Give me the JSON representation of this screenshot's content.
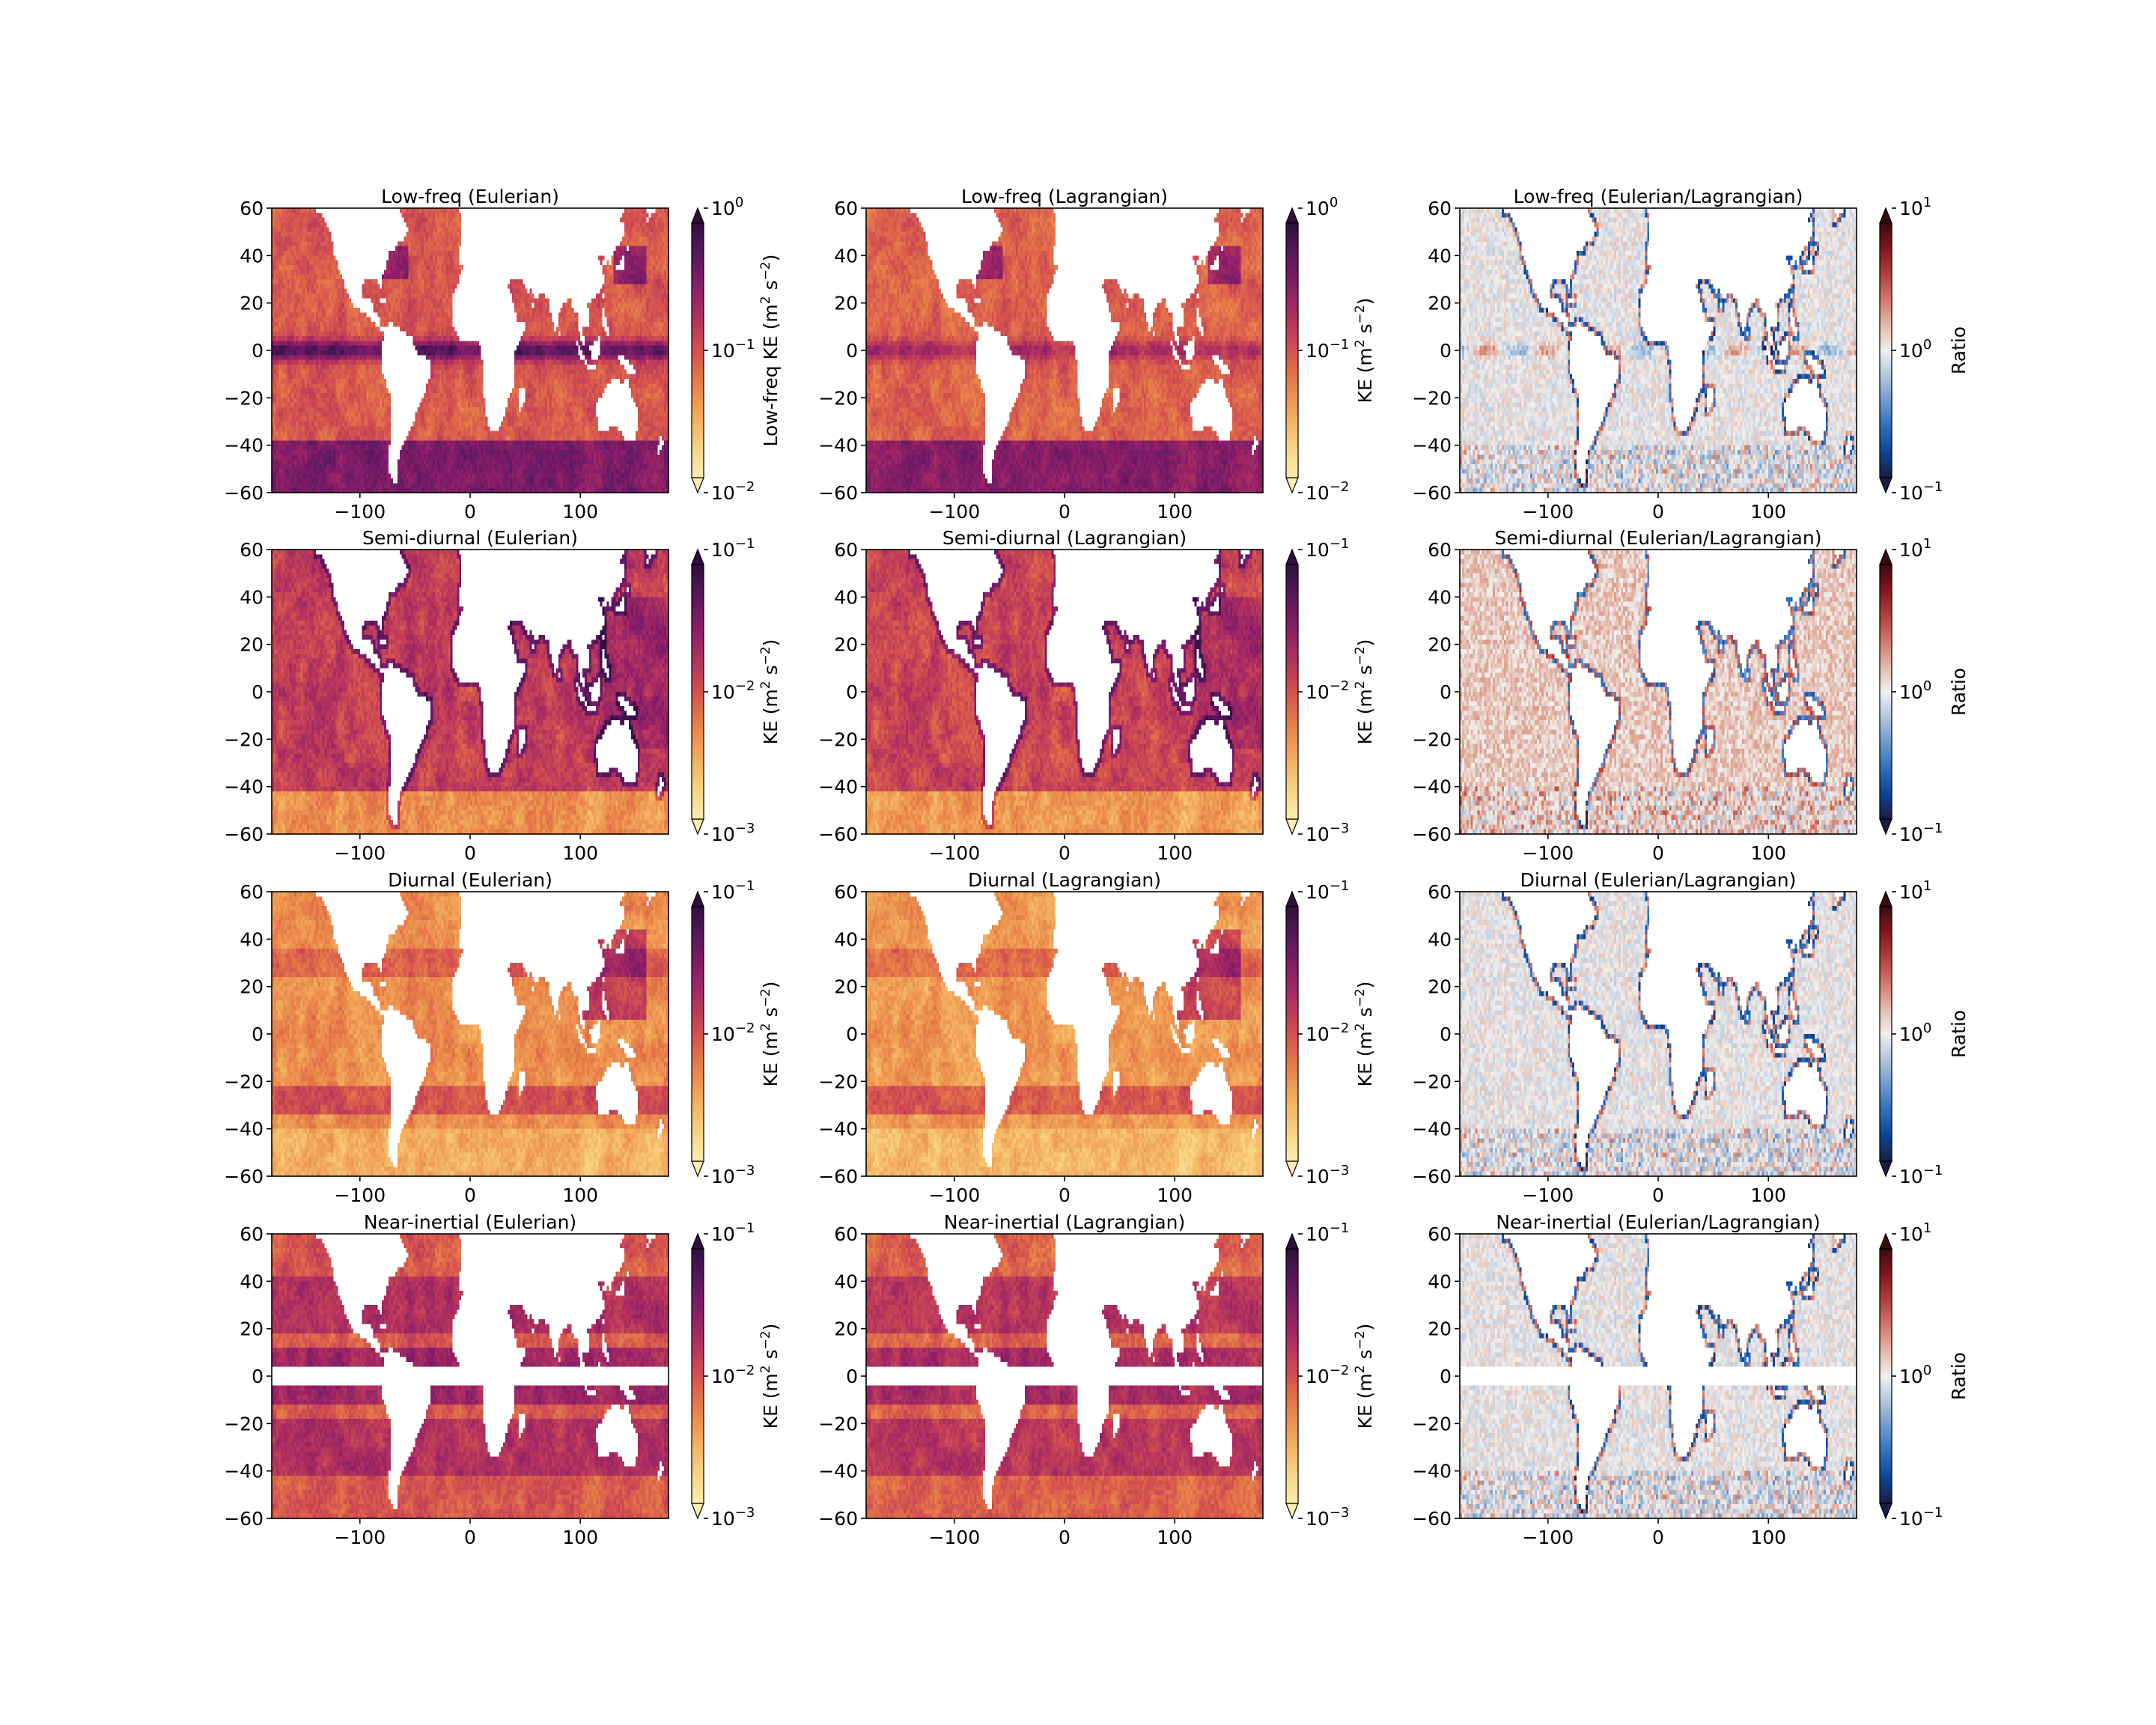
{
  "chart_data": [
    {
      "type": "heatmap",
      "title": "Low-freq (Eulerian)",
      "row": 0,
      "col": 0,
      "band": "low",
      "field": "euler",
      "colormap": "matter",
      "scale": "log",
      "clim": [
        0.01,
        1
      ],
      "cbar_label": "Low-freq KE (m$^2$ s$^{-2}$)",
      "cbar_ticks": [
        "10^0",
        "10^-1",
        "10^-2"
      ],
      "xticks": [
        -100,
        0,
        100
      ],
      "yticks": [
        60,
        40,
        20,
        0,
        -20,
        -40,
        -60
      ],
      "xlim": [
        -180,
        180
      ],
      "ylim": [
        -60,
        60
      ]
    },
    {
      "type": "heatmap",
      "title": "Low-freq (Lagrangian)",
      "row": 0,
      "col": 1,
      "band": "low",
      "field": "lagr",
      "colormap": "matter",
      "scale": "log",
      "clim": [
        0.01,
        1
      ],
      "cbar_label": "KE (m$^2$ s$^{-2}$)",
      "cbar_ticks": [
        "10^0",
        "10^-1",
        "10^-2"
      ],
      "xticks": [
        -100,
        0,
        100
      ],
      "yticks": [
        60,
        40,
        20,
        0,
        -20,
        -40,
        -60
      ],
      "xlim": [
        -180,
        180
      ],
      "ylim": [
        -60,
        60
      ]
    },
    {
      "type": "heatmap",
      "title": "Low-freq (Eulerian/Lagrangian)",
      "row": 0,
      "col": 2,
      "band": "low",
      "field": "ratio",
      "colormap": "balance",
      "scale": "log",
      "clim": [
        0.1,
        10
      ],
      "cbar_label": "Ratio",
      "cbar_ticks": [
        "10^1",
        "10^0",
        "10^-1"
      ],
      "xticks": [
        -100,
        0,
        100
      ],
      "yticks": [
        60,
        40,
        20,
        0,
        -20,
        -40,
        -60
      ],
      "xlim": [
        -180,
        180
      ],
      "ylim": [
        -60,
        60
      ]
    },
    {
      "type": "heatmap",
      "title": "Semi-diurnal (Eulerian)",
      "row": 1,
      "col": 0,
      "band": "semi",
      "field": "euler",
      "colormap": "matter",
      "scale": "log",
      "clim": [
        0.001,
        0.1
      ],
      "cbar_label": "KE (m$^2$ s$^{-2}$)",
      "cbar_ticks": [
        "10^-1",
        "10^-2",
        "10^-3"
      ],
      "xticks": [
        -100,
        0,
        100
      ],
      "yticks": [
        60,
        40,
        20,
        0,
        -20,
        -40,
        -60
      ],
      "xlim": [
        -180,
        180
      ],
      "ylim": [
        -60,
        60
      ]
    },
    {
      "type": "heatmap",
      "title": "Semi-diurnal (Lagrangian)",
      "row": 1,
      "col": 1,
      "band": "semi",
      "field": "lagr",
      "colormap": "matter",
      "scale": "log",
      "clim": [
        0.001,
        0.1
      ],
      "cbar_label": "KE (m$^2$ s$^{-2}$)",
      "cbar_ticks": [
        "10^-1",
        "10^-2",
        "10^-3"
      ],
      "xticks": [
        -100,
        0,
        100
      ],
      "yticks": [
        60,
        40,
        20,
        0,
        -20,
        -40,
        -60
      ],
      "xlim": [
        -180,
        180
      ],
      "ylim": [
        -60,
        60
      ]
    },
    {
      "type": "heatmap",
      "title": "Semi-diurnal (Eulerian/Lagrangian)",
      "row": 1,
      "col": 2,
      "band": "semi",
      "field": "ratio",
      "colormap": "balance",
      "scale": "log",
      "clim": [
        0.1,
        10
      ],
      "cbar_label": "Ratio",
      "cbar_ticks": [
        "10^1",
        "10^0",
        "10^-1"
      ],
      "xticks": [
        -100,
        0,
        100
      ],
      "yticks": [
        60,
        40,
        20,
        0,
        -20,
        -40,
        -60
      ],
      "xlim": [
        -180,
        180
      ],
      "ylim": [
        -60,
        60
      ]
    },
    {
      "type": "heatmap",
      "title": "Diurnal (Eulerian)",
      "row": 2,
      "col": 0,
      "band": "diurnal",
      "field": "euler",
      "colormap": "matter",
      "scale": "log",
      "clim": [
        0.001,
        0.1
      ],
      "cbar_label": "KE (m$^2$ s$^{-2}$)",
      "cbar_ticks": [
        "10^-1",
        "10^-2",
        "10^-3"
      ],
      "xticks": [
        -100,
        0,
        100
      ],
      "yticks": [
        60,
        40,
        20,
        0,
        -20,
        -40,
        -60
      ],
      "xlim": [
        -180,
        180
      ],
      "ylim": [
        -60,
        60
      ]
    },
    {
      "type": "heatmap",
      "title": "Diurnal (Lagrangian)",
      "row": 2,
      "col": 1,
      "band": "diurnal",
      "field": "lagr",
      "colormap": "matter",
      "scale": "log",
      "clim": [
        0.001,
        0.1
      ],
      "cbar_label": "KE (m$^2$ s$^{-2}$)",
      "cbar_ticks": [
        "10^-1",
        "10^-2",
        "10^-3"
      ],
      "xticks": [
        -100,
        0,
        100
      ],
      "yticks": [
        60,
        40,
        20,
        0,
        -20,
        -40,
        -60
      ],
      "xlim": [
        -180,
        180
      ],
      "ylim": [
        -60,
        60
      ]
    },
    {
      "type": "heatmap",
      "title": "Diurnal (Eulerian/Lagrangian)",
      "row": 2,
      "col": 2,
      "band": "diurnal",
      "field": "ratio",
      "colormap": "balance",
      "scale": "log",
      "clim": [
        0.1,
        10
      ],
      "cbar_label": "Ratio",
      "cbar_ticks": [
        "10^1",
        "10^0",
        "10^-1"
      ],
      "xticks": [
        -100,
        0,
        100
      ],
      "yticks": [
        60,
        40,
        20,
        0,
        -20,
        -40,
        -60
      ],
      "xlim": [
        -180,
        180
      ],
      "ylim": [
        -60,
        60
      ]
    },
    {
      "type": "heatmap",
      "title": "Near-inertial (Eulerian)",
      "row": 3,
      "col": 0,
      "band": "ni",
      "field": "euler",
      "colormap": "matter",
      "scale": "log",
      "clim": [
        0.001,
        0.1
      ],
      "cbar_label": "KE (m$^2$ s$^{-2}$)",
      "cbar_ticks": [
        "10^-1",
        "10^-2",
        "10^-3"
      ],
      "xticks": [
        -100,
        0,
        100
      ],
      "yticks": [
        60,
        40,
        20,
        0,
        -20,
        -40,
        -60
      ],
      "xlim": [
        -180,
        180
      ],
      "ylim": [
        -60,
        60
      ]
    },
    {
      "type": "heatmap",
      "title": "Near-inertial (Lagrangian)",
      "row": 3,
      "col": 1,
      "band": "ni",
      "field": "lagr",
      "colormap": "matter",
      "scale": "log",
      "clim": [
        0.001,
        0.1
      ],
      "cbar_label": "KE (m$^2$ s$^{-2}$)",
      "cbar_ticks": [
        "10^-1",
        "10^-2",
        "10^-3"
      ],
      "xticks": [
        -100,
        0,
        100
      ],
      "yticks": [
        60,
        40,
        20,
        0,
        -20,
        -40,
        -60
      ],
      "xlim": [
        -180,
        180
      ],
      "ylim": [
        -60,
        60
      ]
    },
    {
      "type": "heatmap",
      "title": "Near-inertial (Eulerian/Lagrangian)",
      "row": 3,
      "col": 2,
      "band": "ni",
      "field": "ratio",
      "colormap": "balance",
      "scale": "log",
      "clim": [
        0.1,
        10
      ],
      "cbar_label": "Ratio",
      "cbar_ticks": [
        "10^1",
        "10^0",
        "10^-1"
      ],
      "xticks": [
        -100,
        0,
        100
      ],
      "yticks": [
        60,
        40,
        20,
        0,
        -20,
        -40,
        -60
      ],
      "xlim": [
        -180,
        180
      ],
      "ylim": [
        -60,
        60
      ]
    }
  ],
  "colors": {
    "matter": [
      "#2f0f3e",
      "#5a1861",
      "#891d69",
      "#b1305f",
      "#d4514f",
      "#e77e48",
      "#f2aa5a",
      "#f8d27f",
      "#fdedb0"
    ],
    "balance": [
      "#181c43",
      "#0b4fa8",
      "#4b83c5",
      "#a3bcd9",
      "#f0f0f0",
      "#e0ab9a",
      "#c6584a",
      "#921c22",
      "#3c0911"
    ],
    "background": "#ffffff"
  }
}
